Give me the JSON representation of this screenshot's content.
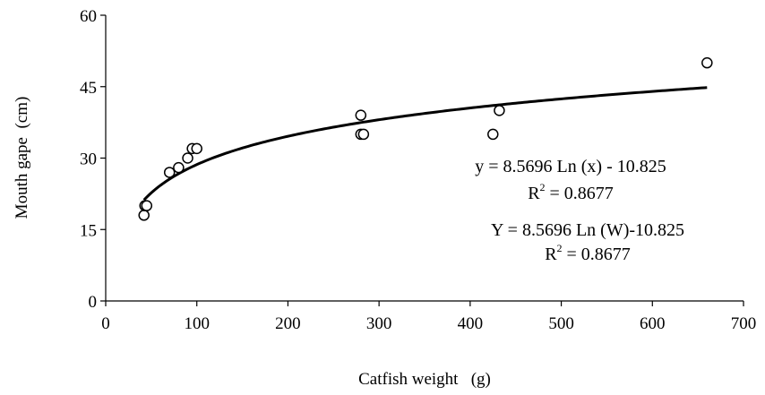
{
  "chart_data": {
    "type": "scatter",
    "title": "",
    "xlabel": "Catfish weight   (g)",
    "ylabel": "Mouth gape  (cm)",
    "xlim": [
      0,
      700
    ],
    "ylim": [
      0,
      60
    ],
    "x_ticks": [
      0,
      100,
      200,
      300,
      400,
      500,
      600,
      700
    ],
    "y_ticks": [
      0,
      15,
      30,
      45,
      60
    ],
    "grid": false,
    "series": [
      {
        "marker": "open-circle",
        "points": [
          {
            "x": 42,
            "y": 18
          },
          {
            "x": 43,
            "y": 20
          },
          {
            "x": 45,
            "y": 20
          },
          {
            "x": 70,
            "y": 27
          },
          {
            "x": 80,
            "y": 28
          },
          {
            "x": 90,
            "y": 30
          },
          {
            "x": 95,
            "y": 32
          },
          {
            "x": 100,
            "y": 32
          },
          {
            "x": 280,
            "y": 39
          },
          {
            "x": 280,
            "y": 35
          },
          {
            "x": 283,
            "y": 35
          },
          {
            "x": 425,
            "y": 35
          },
          {
            "x": 432,
            "y": 40
          },
          {
            "x": 660,
            "y": 50
          }
        ]
      }
    ],
    "trendline": {
      "type": "logarithmic",
      "a": 8.5696,
      "b": -10.825,
      "x_range": [
        42,
        660
      ]
    },
    "annotations": {
      "eq1": "y = 8.5696 Ln (x) - 10.825",
      "r2_1_base": "R",
      "r2_1_sup": "2",
      "r2_1_rest": " = 0.8677",
      "eq2": "Y = 8.5696 Ln (W)-10.825",
      "r2_2_base": "R",
      "r2_2_sup": "2",
      "r2_2_rest": " = 0.8677"
    }
  }
}
